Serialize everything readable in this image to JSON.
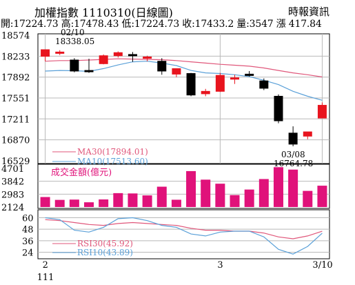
{
  "header": {
    "title": "加權指數 1110310(日線圖)",
    "source": "時報資訊",
    "ohlc_line": "開:17224.73 高:17478.43 低:17224.73 收:17433.2 量:3547 漲 417.84"
  },
  "annotations": {
    "high_date": "02/10",
    "high_value": "18338.05",
    "low_date": "03/08",
    "low_value": "16764.78"
  },
  "colors": {
    "up": "#e8141e",
    "down": "#000000",
    "ma30": "#e0567a",
    "ma10": "#5aa0d8",
    "volume": "#e0127a",
    "rsi30": "#e0567a",
    "rsi10": "#5aa0d8",
    "grid": "#b8b8b8"
  },
  "chart_data": [
    {
      "type": "candlestick",
      "y_ticks": [
        18574,
        18233,
        17892,
        17551,
        17211,
        16870,
        16529
      ],
      "ylim": [
        16529,
        18574
      ],
      "candles": [
        {
          "o": 18230,
          "h": 18338,
          "l": 18150,
          "c": 18338
        },
        {
          "o": 18280,
          "h": 18330,
          "l": 18250,
          "c": 18300
        },
        {
          "o": 18170,
          "h": 18200,
          "l": 17970,
          "c": 17990
        },
        {
          "o": 18000,
          "h": 18190,
          "l": 17960,
          "c": 17980
        },
        {
          "o": 18110,
          "h": 18260,
          "l": 18100,
          "c": 18240
        },
        {
          "o": 18240,
          "h": 18310,
          "l": 18210,
          "c": 18290
        },
        {
          "o": 18260,
          "h": 18300,
          "l": 18140,
          "c": 18250
        },
        {
          "o": 18200,
          "h": 18240,
          "l": 18150,
          "c": 18220
        },
        {
          "o": 18150,
          "h": 18200,
          "l": 17930,
          "c": 17990
        },
        {
          "o": 17940,
          "h": 18010,
          "l": 17890,
          "c": 18030
        },
        {
          "o": 17950,
          "h": 17960,
          "l": 17580,
          "c": 17600
        },
        {
          "o": 17620,
          "h": 17700,
          "l": 17580,
          "c": 17660
        },
        {
          "o": 17660,
          "h": 17960,
          "l": 17650,
          "c": 17920
        },
        {
          "o": 17880,
          "h": 17930,
          "l": 17780,
          "c": 17880
        },
        {
          "o": 17940,
          "h": 17990,
          "l": 17900,
          "c": 17930
        },
        {
          "o": 17830,
          "h": 17870,
          "l": 17680,
          "c": 17710
        },
        {
          "o": 17580,
          "h": 17610,
          "l": 17140,
          "c": 17180
        },
        {
          "o": 16980,
          "h": 17090,
          "l": 16765,
          "c": 16800
        },
        {
          "o": 16930,
          "h": 17000,
          "l": 16880,
          "c": 17000
        },
        {
          "o": 17225,
          "h": 17478,
          "l": 17225,
          "c": 17433
        }
      ],
      "ma30": {
        "name": "MA30(17894.01)",
        "values": [
          18150,
          18160,
          18160,
          18170,
          18180,
          18190,
          18185,
          18180,
          18175,
          18160,
          18140,
          18120,
          18100,
          18085,
          18070,
          18040,
          18000,
          17960,
          17930,
          17894
        ]
      },
      "ma10": {
        "name": "MA10(17513.60)",
        "values": [
          17990,
          18000,
          17995,
          17985,
          18030,
          18090,
          18140,
          18150,
          18120,
          18080,
          18000,
          17960,
          17950,
          17930,
          17900,
          17840,
          17770,
          17660,
          17580,
          17514
        ]
      }
    },
    {
      "type": "bar",
      "title": "成交金額(億元)",
      "y_ticks": [
        4701,
        3842,
        2983,
        2124
      ],
      "ylim": [
        2124,
        4701
      ],
      "values": [
        2790,
        2600,
        2620,
        2440,
        2630,
        3050,
        3030,
        2900,
        3480,
        2610,
        4520,
        3950,
        3680,
        2920,
        3290,
        3990,
        4780,
        4620,
        3200,
        3547
      ]
    },
    {
      "type": "line",
      "y_ticks": [
        60,
        48,
        36,
        24
      ],
      "ylim": [
        20,
        64
      ],
      "series": [
        {
          "name": "RSI30(45.92)",
          "values": [
            58,
            57,
            55,
            53,
            52,
            54,
            55,
            54,
            53,
            52,
            49,
            47,
            47,
            46,
            46,
            44,
            40,
            38,
            41,
            45.92
          ]
        },
        {
          "name": "RSI10(43.89)",
          "values": [
            60,
            58,
            47,
            45,
            50,
            59,
            60,
            57,
            52,
            50,
            43,
            41,
            45,
            46,
            46,
            40,
            27,
            22,
            30,
            43.89
          ]
        }
      ],
      "x_labels": [
        {
          "index": 0,
          "label": "2"
        },
        {
          "index": 0,
          "label": "111"
        },
        {
          "index": 12,
          "label": "3"
        },
        {
          "index": 19,
          "label": "3/10"
        }
      ]
    }
  ]
}
